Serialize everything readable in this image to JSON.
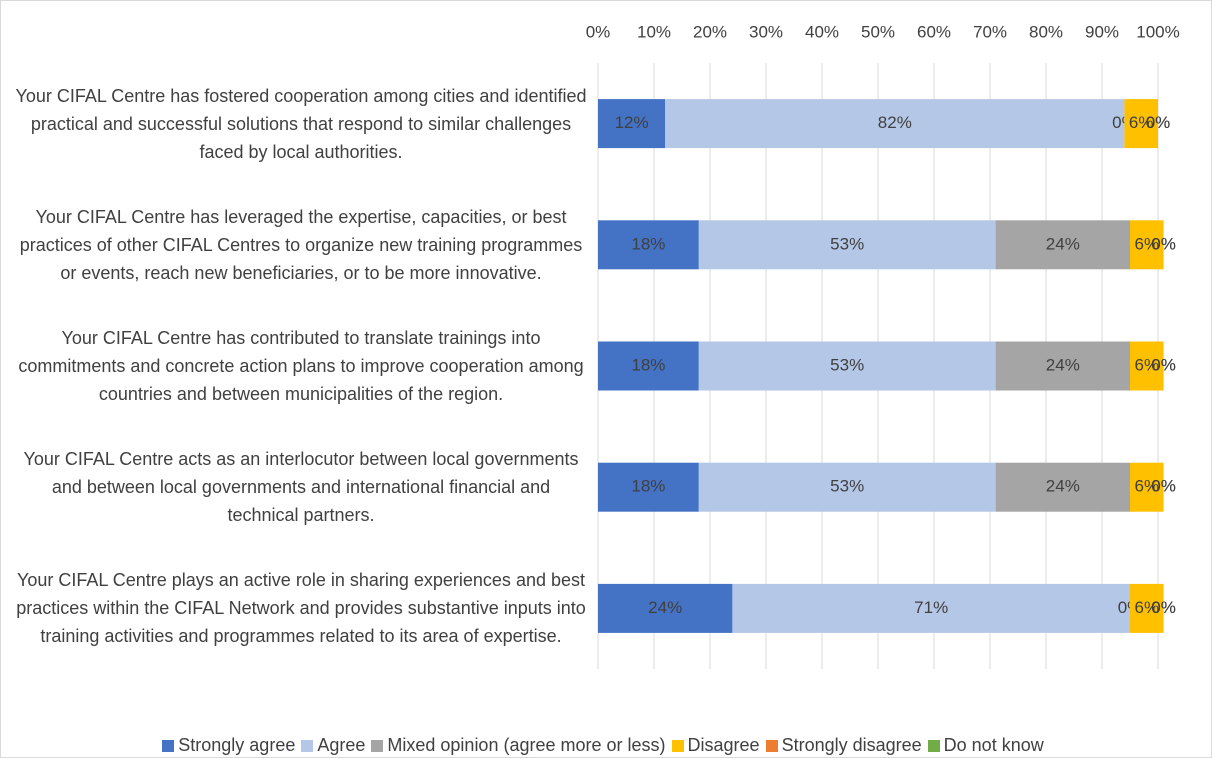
{
  "chart_data": {
    "type": "stacked-bar-horizontal",
    "categories": [
      "Your CIFAL Centre has fostered cooperation among cities and identified practical and successful solutions that respond to similar challenges faced by local authorities.",
      "Your CIFAL Centre has leveraged the expertise, capacities, or best practices of other CIFAL Centres to organize new training programmes or events, reach new beneficiaries, or to be more innovative.",
      "Your CIFAL Centre has contributed to translate trainings into commitments and concrete action plans to improve cooperation among countries and between municipalities of the region.",
      "Your CIFAL Centre acts as an interlocutor between local governments and between local governments and international financial and technical partners.",
      "Your CIFAL Centre plays an active role in sharing experiences and best practices within the CIFAL Network and provides substantive inputs into training activities and programmes related to its area of expertise."
    ],
    "series": [
      {
        "name": "Strongly agree",
        "color": "#4472c4",
        "values": [
          12,
          18,
          18,
          18,
          24
        ],
        "value_labels": [
          "12%",
          "18%",
          "18%",
          "18%",
          "24%"
        ]
      },
      {
        "name": "Agree",
        "color": "#b4c7e7",
        "values": [
          82,
          53,
          53,
          53,
          71
        ],
        "value_labels": [
          "82%",
          "53%",
          "53%",
          "53%",
          "71%"
        ]
      },
      {
        "name": "Mixed opinion (agree more or less)",
        "color": "#a5a5a5",
        "values": [
          0,
          24,
          24,
          24,
          0
        ],
        "value_labels": [
          "0%",
          "24%",
          "24%",
          "24%",
          "0%"
        ]
      },
      {
        "name": "Disagree",
        "color": "#ffc000",
        "values": [
          6,
          6,
          6,
          6,
          6
        ],
        "value_labels": [
          "6%",
          "6%",
          "6%",
          "6%",
          "6%"
        ]
      },
      {
        "name": "Strongly disagree",
        "color": "#ed7d31",
        "values": [
          0,
          0,
          0,
          0,
          0
        ],
        "value_labels": [
          "0%",
          "0%",
          "0%",
          "0%",
          "0%"
        ]
      },
      {
        "name": "Do not know",
        "color": "#70ad47",
        "values": [
          0,
          0,
          0,
          0,
          0
        ],
        "value_labels": [
          "0%",
          "0%",
          "0%",
          "0%",
          "0%"
        ]
      }
    ],
    "xlim": [
      0,
      100
    ],
    "xticks": [
      {
        "value": 0,
        "label": "0%"
      },
      {
        "value": 10,
        "label": "10%"
      },
      {
        "value": 20,
        "label": "20%"
      },
      {
        "value": 30,
        "label": "30%"
      },
      {
        "value": 40,
        "label": "40%"
      },
      {
        "value": 50,
        "label": "50%"
      },
      {
        "value": 60,
        "label": "60%"
      },
      {
        "value": 70,
        "label": "70%"
      },
      {
        "value": 80,
        "label": "80%"
      },
      {
        "value": 90,
        "label": "90%"
      },
      {
        "value": 100,
        "label": "100%"
      }
    ],
    "grid": true,
    "legend": "bottom"
  }
}
